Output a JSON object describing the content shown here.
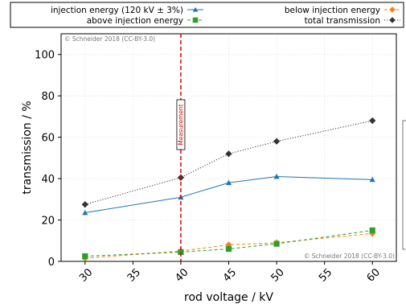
{
  "chart_data": {
    "type": "line",
    "xlabel": "rod voltage / kV",
    "ylabel": "transmission / %",
    "xlim": [
      27.5,
      62.5
    ],
    "ylim": [
      0,
      110
    ],
    "xticks": [
      30,
      35,
      40,
      45,
      50,
      55,
      60
    ],
    "yticks": [
      0,
      20,
      40,
      60,
      80,
      100
    ],
    "grid": true,
    "legend_position": "top",
    "series": [
      {
        "name": "injection energy (120 kV ± 3%)",
        "color": "#1f77b4",
        "marker": "triangle",
        "line_style": "solid",
        "x": [
          30,
          40,
          45,
          50,
          60
        ],
        "y": [
          23.5,
          31,
          38,
          41,
          39.5
        ]
      },
      {
        "name": "above injection energy",
        "color": "#2ca02c",
        "marker": "square",
        "line_style": "dashed",
        "x": [
          30,
          40,
          45,
          50,
          60
        ],
        "y": [
          2.5,
          4.5,
          6,
          8.5,
          15
        ]
      },
      {
        "name": "below injection energy",
        "color": "#ff7f0e",
        "marker": "diamond",
        "line_style": "dashed",
        "x": [
          30,
          40,
          45,
          50,
          60
        ],
        "y": [
          1.5,
          5,
          8,
          9,
          13.5
        ]
      },
      {
        "name": "total transmission",
        "color": "#333333",
        "marker": "diamond",
        "line_style": "dotted",
        "x": [
          30,
          40,
          45,
          50,
          60
        ],
        "y": [
          27.5,
          40.5,
          52,
          58,
          68
        ]
      }
    ],
    "annotations": {
      "measurement_line_x": 40,
      "measurement_label": "Measurement",
      "measurement_color": "#dd0000",
      "copyright_top": "© Schneider 2018 (CC-BY-3.0)",
      "copyright_bottom": "© Schneider 2018 (CC-BY-3.0)"
    }
  }
}
